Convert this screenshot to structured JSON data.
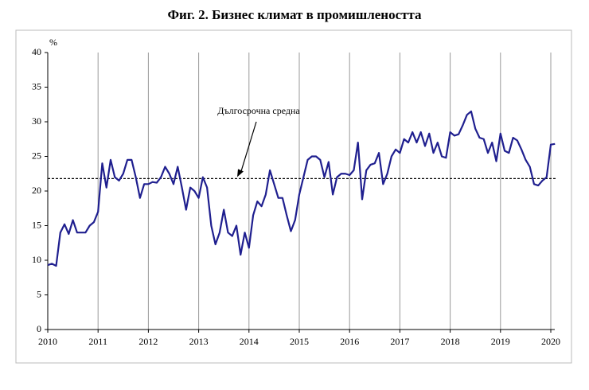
{
  "chart_data": {
    "type": "line",
    "title": "Фиг. 2. Бизнес климат в промишлеността",
    "y_label": "%",
    "categories": [
      "2010",
      null,
      null,
      null,
      null,
      null,
      null,
      null,
      null,
      null,
      null,
      null,
      "2011",
      null,
      null,
      null,
      null,
      null,
      null,
      null,
      null,
      null,
      null,
      null,
      "2012",
      null,
      null,
      null,
      null,
      null,
      null,
      null,
      null,
      null,
      null,
      null,
      "2013",
      null,
      null,
      null,
      null,
      null,
      null,
      null,
      null,
      null,
      null,
      null,
      "2014",
      null,
      null,
      null,
      null,
      null,
      null,
      null,
      null,
      null,
      null,
      null,
      "2015",
      null,
      null,
      null,
      null,
      null,
      null,
      null,
      null,
      null,
      null,
      null,
      "2016",
      null,
      null,
      null,
      null,
      null,
      null,
      null,
      null,
      null,
      null,
      null,
      "2017",
      null,
      null,
      null,
      null,
      null,
      null,
      null,
      null,
      null,
      null,
      null,
      "2018",
      null,
      null,
      null,
      null,
      null,
      null,
      null,
      null,
      null,
      null,
      null,
      "2019",
      null,
      null,
      null,
      null,
      null,
      null,
      null,
      null,
      null,
      null,
      null,
      "2020",
      null
    ],
    "series": [
      {
        "color": "#1f1f8f",
        "values": [
          9.3,
          9.5,
          9.2,
          14,
          15.2,
          13.8,
          15.8,
          14,
          14,
          14,
          15,
          15.5,
          17,
          24,
          20.5,
          24.5,
          22,
          21.5,
          22.5,
          24.5,
          24.5,
          22,
          19,
          21,
          21,
          21.3,
          21.2,
          22,
          23.5,
          22.5,
          21,
          23.5,
          20.5,
          17.3,
          20.5,
          20,
          19,
          22,
          20.5,
          15,
          12.3,
          14,
          17.3,
          14,
          13.5,
          15,
          10.8,
          14,
          11.8,
          16.5,
          18.5,
          17.8,
          19.5,
          23,
          21,
          19,
          19,
          16.5,
          14.2,
          15.8,
          19.5,
          22,
          24.5,
          25,
          25,
          24.5,
          22,
          24.2,
          19.5,
          22,
          22.5,
          22.5,
          22.3,
          23,
          27,
          18.8,
          23,
          23.8,
          24,
          25.5,
          21,
          22.5,
          25,
          26,
          25.5,
          27.5,
          27,
          28.5,
          27,
          28.5,
          26.5,
          28.3,
          25.5,
          27,
          25,
          24.8,
          28.5,
          28,
          28.2,
          29.5,
          31,
          31.5,
          29,
          27.7,
          27.5,
          25.5,
          27,
          24.3,
          28.3,
          25.8,
          25.5,
          27.7,
          27.3,
          26,
          24.5,
          23.5,
          21,
          20.8,
          21.5,
          22,
          26.7,
          26.8
        ]
      }
    ],
    "reference_line": {
      "value": 21.8,
      "label": "Дългосрочна средна"
    },
    "ylim": [
      0,
      40
    ],
    "yticks": [
      0,
      5,
      10,
      15,
      20,
      25,
      30,
      35,
      40
    ],
    "grid": true
  }
}
